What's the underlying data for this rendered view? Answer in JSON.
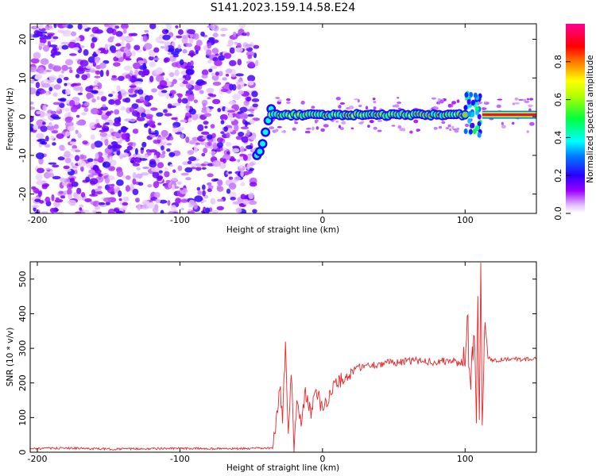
{
  "figure_title": "S141.2023.159.14.58.E24",
  "chart_data": [
    {
      "type": "heatmap",
      "title": "S141.2023.159.14.58.E24",
      "xlabel": "Height of straight line (km)",
      "ylabel": "Frequency (Hz)",
      "xlim": [
        -205,
        150
      ],
      "ylim": [
        -25,
        24
      ],
      "x_ticks": [
        -200,
        -100,
        0,
        100
      ],
      "y_ticks": [
        -20,
        -10,
        0,
        10,
        20
      ],
      "grid": false,
      "colorbar": {
        "label": "Normalized spectral amplitude",
        "range": [
          0.0,
          1.0
        ],
        "ticks": [
          0.0,
          0.2,
          0.4,
          0.6,
          0.8
        ],
        "colormap": "hsv (violet - blue - cyan - green - yellow - red - pink)"
      },
      "regions": [
        {
          "x_range": [
            -205,
            -46
          ],
          "y_range": [
            -25,
            24
          ],
          "description": "broadband noise, amplitude ~0.0-0.3"
        },
        {
          "x_range": [
            -46,
            -36
          ],
          "frequency_track": [
            -10,
            -9,
            -7,
            -4,
            -1,
            2
          ],
          "amplitude": 0.4
        },
        {
          "x_range": [
            -36,
            100
          ],
          "frequency_hz": 0.5,
          "amplitude_range": [
            0.4,
            0.9
          ]
        },
        {
          "x_range": [
            100,
            112
          ],
          "frequency_range": [
            -5,
            6
          ],
          "amplitude": 0.35
        },
        {
          "x_range": [
            112,
            150
          ],
          "frequency_hz": 0.5,
          "amplitude": 0.95
        }
      ]
    },
    {
      "type": "line",
      "xlabel": "Height of straight line (km)",
      "ylabel": "SNR (10 * v/v)",
      "xlim": [
        -205,
        150
      ],
      "ylim": [
        0,
        550
      ],
      "x_ticks": [
        -200,
        -100,
        0,
        100
      ],
      "y_ticks": [
        0,
        100,
        200,
        300,
        400,
        500
      ],
      "grid": false,
      "series": [
        {
          "color": "#e8262a",
          "x": [
            -205,
            -180,
            -150,
            -100,
            -60,
            -35,
            -33,
            -30,
            -28,
            -26,
            -24,
            -22,
            -20,
            -18,
            -15,
            -12,
            -8,
            -5,
            0,
            5,
            10,
            15,
            20,
            25,
            30,
            40,
            50,
            60,
            70,
            80,
            90,
            95,
            100,
            102,
            104,
            106,
            108,
            109,
            110,
            111,
            112,
            114,
            116,
            120,
            130,
            140,
            150
          ],
          "y": [
            10,
            12,
            9,
            11,
            10,
            12,
            60,
            200,
            100,
            300,
            50,
            230,
            20,
            150,
            90,
            170,
            110,
            190,
            120,
            170,
            200,
            215,
            230,
            245,
            250,
            255,
            260,
            262,
            265,
            260,
            265,
            258,
            265,
            350,
            150,
            360,
            130,
            420,
            70,
            545,
            100,
            380,
            275,
            265,
            270,
            268,
            270
          ]
        }
      ]
    }
  ]
}
